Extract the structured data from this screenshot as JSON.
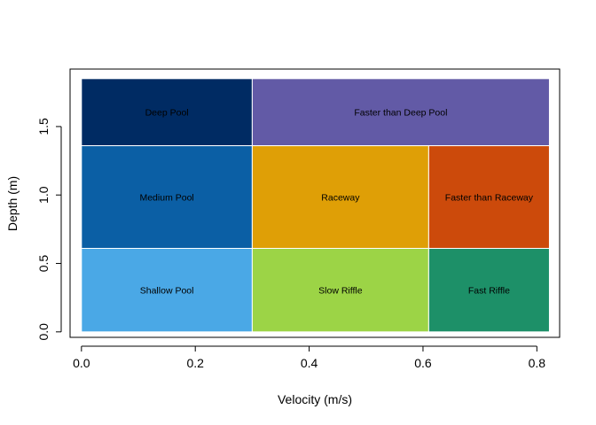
{
  "chart_data": {
    "type": "heatmap",
    "title": "",
    "xlabel": "Velocity (m/s)",
    "ylabel": "Depth (m)",
    "xlim": [
      -0.02,
      0.84
    ],
    "ylim": [
      -0.04,
      1.92
    ],
    "x_ticks": [
      0.0,
      0.2,
      0.4,
      0.6,
      0.8
    ],
    "x_tick_labels": [
      "0.0",
      "0.2",
      "0.4",
      "0.6",
      "0.8"
    ],
    "y_ticks": [
      0.0,
      0.5,
      1.0,
      1.5
    ],
    "y_tick_labels": [
      "0.0",
      "0.5",
      "1.0",
      "1.5"
    ],
    "grid": false,
    "legend": "none",
    "regions": [
      {
        "label": "Deep Pool",
        "x0": 0.0,
        "x1": 0.3,
        "y0": 1.36,
        "y1": 1.85,
        "color": "#002b63"
      },
      {
        "label": "Faster than Deep Pool",
        "x0": 0.3,
        "x1": 0.822,
        "y0": 1.36,
        "y1": 1.85,
        "color": "#625aa6"
      },
      {
        "label": "Medium Pool",
        "x0": 0.0,
        "x1": 0.3,
        "y0": 0.61,
        "y1": 1.36,
        "color": "#0b5fa5"
      },
      {
        "label": "Raceway",
        "x0": 0.3,
        "x1": 0.61,
        "y0": 0.61,
        "y1": 1.36,
        "color": "#df9f06"
      },
      {
        "label": "Faster than Raceway",
        "x0": 0.61,
        "x1": 0.822,
        "y0": 0.61,
        "y1": 1.36,
        "color": "#cc4a0b"
      },
      {
        "label": "Shallow Pool",
        "x0": 0.0,
        "x1": 0.3,
        "y0": 0.0,
        "y1": 0.61,
        "color": "#4aa8e6"
      },
      {
        "label": "Slow Riffle",
        "x0": 0.3,
        "x1": 0.61,
        "y0": 0.0,
        "y1": 0.61,
        "color": "#9cd446"
      },
      {
        "label": "Fast Riffle",
        "x0": 0.61,
        "x1": 0.822,
        "y0": 0.0,
        "y1": 0.61,
        "color": "#1d9068"
      }
    ]
  }
}
